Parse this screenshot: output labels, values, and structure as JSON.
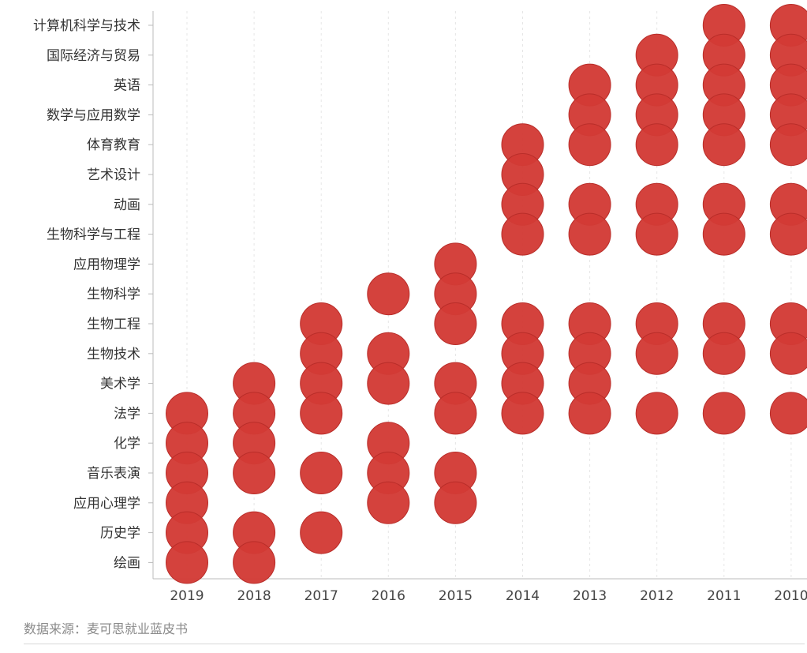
{
  "chart_data": {
    "type": "scatter",
    "x_categories": [
      "2019",
      "2018",
      "2017",
      "2016",
      "2015",
      "2014",
      "2013",
      "2012",
      "2011",
      "2010"
    ],
    "y_categories": [
      "计算机科学与技术",
      "国际经济与贸易",
      "英语",
      "数学与应用数学",
      "体育教育",
      "艺术设计",
      "动画",
      "生物科学与工程",
      "应用物理学",
      "生物科学",
      "生物工程",
      "生物技术",
      "美术学",
      "法学",
      "化学",
      "音乐表演",
      "应用心理学",
      "历史学",
      "绘画"
    ],
    "points": [
      {
        "x": "2019",
        "y": "法学"
      },
      {
        "x": "2019",
        "y": "化学"
      },
      {
        "x": "2019",
        "y": "音乐表演"
      },
      {
        "x": "2019",
        "y": "应用心理学"
      },
      {
        "x": "2019",
        "y": "历史学"
      },
      {
        "x": "2019",
        "y": "绘画"
      },
      {
        "x": "2018",
        "y": "美术学"
      },
      {
        "x": "2018",
        "y": "法学"
      },
      {
        "x": "2018",
        "y": "化学"
      },
      {
        "x": "2018",
        "y": "音乐表演"
      },
      {
        "x": "2018",
        "y": "历史学"
      },
      {
        "x": "2018",
        "y": "绘画"
      },
      {
        "x": "2017",
        "y": "生物工程"
      },
      {
        "x": "2017",
        "y": "生物技术"
      },
      {
        "x": "2017",
        "y": "美术学"
      },
      {
        "x": "2017",
        "y": "法学"
      },
      {
        "x": "2017",
        "y": "音乐表演"
      },
      {
        "x": "2017",
        "y": "历史学"
      },
      {
        "x": "2016",
        "y": "生物科学"
      },
      {
        "x": "2016",
        "y": "生物技术"
      },
      {
        "x": "2016",
        "y": "美术学"
      },
      {
        "x": "2016",
        "y": "化学"
      },
      {
        "x": "2016",
        "y": "音乐表演"
      },
      {
        "x": "2016",
        "y": "应用心理学"
      },
      {
        "x": "2015",
        "y": "应用物理学"
      },
      {
        "x": "2015",
        "y": "生物科学"
      },
      {
        "x": "2015",
        "y": "生物工程"
      },
      {
        "x": "2015",
        "y": "美术学"
      },
      {
        "x": "2015",
        "y": "法学"
      },
      {
        "x": "2015",
        "y": "音乐表演"
      },
      {
        "x": "2015",
        "y": "应用心理学"
      },
      {
        "x": "2014",
        "y": "体育教育"
      },
      {
        "x": "2014",
        "y": "艺术设计"
      },
      {
        "x": "2014",
        "y": "动画"
      },
      {
        "x": "2014",
        "y": "生物科学与工程"
      },
      {
        "x": "2014",
        "y": "生物工程"
      },
      {
        "x": "2014",
        "y": "生物技术"
      },
      {
        "x": "2014",
        "y": "美术学"
      },
      {
        "x": "2014",
        "y": "法学"
      },
      {
        "x": "2013",
        "y": "英语"
      },
      {
        "x": "2013",
        "y": "数学与应用数学"
      },
      {
        "x": "2013",
        "y": "体育教育"
      },
      {
        "x": "2013",
        "y": "动画"
      },
      {
        "x": "2013",
        "y": "生物科学与工程"
      },
      {
        "x": "2013",
        "y": "生物工程"
      },
      {
        "x": "2013",
        "y": "生物技术"
      },
      {
        "x": "2013",
        "y": "美术学"
      },
      {
        "x": "2013",
        "y": "法学"
      },
      {
        "x": "2012",
        "y": "国际经济与贸易"
      },
      {
        "x": "2012",
        "y": "英语"
      },
      {
        "x": "2012",
        "y": "数学与应用数学"
      },
      {
        "x": "2012",
        "y": "体育教育"
      },
      {
        "x": "2012",
        "y": "动画"
      },
      {
        "x": "2012",
        "y": "生物科学与工程"
      },
      {
        "x": "2012",
        "y": "生物工程"
      },
      {
        "x": "2012",
        "y": "生物技术"
      },
      {
        "x": "2012",
        "y": "法学"
      },
      {
        "x": "2011",
        "y": "计算机科学与技术"
      },
      {
        "x": "2011",
        "y": "国际经济与贸易"
      },
      {
        "x": "2011",
        "y": "英语"
      },
      {
        "x": "2011",
        "y": "数学与应用数学"
      },
      {
        "x": "2011",
        "y": "体育教育"
      },
      {
        "x": "2011",
        "y": "动画"
      },
      {
        "x": "2011",
        "y": "生物科学与工程"
      },
      {
        "x": "2011",
        "y": "生物工程"
      },
      {
        "x": "2011",
        "y": "生物技术"
      },
      {
        "x": "2011",
        "y": "法学"
      },
      {
        "x": "2010",
        "y": "计算机科学与技术"
      },
      {
        "x": "2010",
        "y": "国际经济与贸易"
      },
      {
        "x": "2010",
        "y": "英语"
      },
      {
        "x": "2010",
        "y": "数学与应用数学"
      },
      {
        "x": "2010",
        "y": "体育教育"
      },
      {
        "x": "2010",
        "y": "动画"
      },
      {
        "x": "2010",
        "y": "生物科学与工程"
      },
      {
        "x": "2010",
        "y": "生物工程"
      },
      {
        "x": "2010",
        "y": "生物技术"
      },
      {
        "x": "2010",
        "y": "法学"
      }
    ],
    "marker_color": "#d23a35",
    "grid": "vertical dashed",
    "legend": "none",
    "title": "",
    "xlabel": "",
    "ylabel": ""
  },
  "source_text": "数据来源：麦可思就业蓝皮书"
}
